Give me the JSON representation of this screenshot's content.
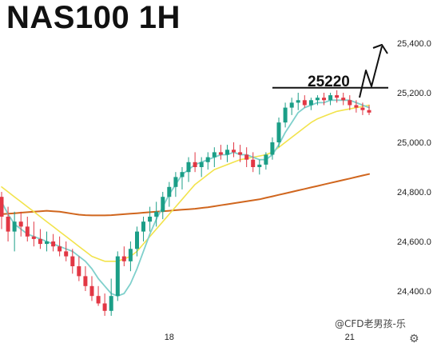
{
  "header": {
    "title": "NAS100 1H"
  },
  "watermark": "@CFD老男孩-乐",
  "chart_data": {
    "type": "candlestick",
    "title": "NAS100 1H",
    "xlabel": "",
    "ylabel": "",
    "ylim": [
      24180,
      25540
    ],
    "y_ticks": [
      24400,
      24600,
      24800,
      25000,
      25200,
      25400
    ],
    "y_tick_labels": [
      "24,400.0",
      "24,600.0",
      "24,800.0",
      "25,000.0",
      "25,200.0",
      "25,400.0"
    ],
    "x_ticks": [
      {
        "label": "18",
        "index": 26
      },
      {
        "label": "21",
        "index": 54
      }
    ],
    "colors": {
      "up": "#1b9e87",
      "down": "#e23744",
      "ma_fast": "#7fd0cc",
      "ma_mid": "#f2e34c",
      "ma_slow": "#d0661e"
    },
    "candles": [
      [
        24780,
        24800,
        24650,
        24700
      ],
      [
        24700,
        24740,
        24600,
        24640
      ],
      [
        24640,
        24720,
        24560,
        24680
      ],
      [
        24680,
        24720,
        24620,
        24660
      ],
      [
        24660,
        24700,
        24600,
        24620
      ],
      [
        24620,
        24680,
        24580,
        24610
      ],
      [
        24610,
        24650,
        24570,
        24590
      ],
      [
        24590,
        24640,
        24560,
        24600
      ],
      [
        24600,
        24630,
        24560,
        24580
      ],
      [
        24580,
        24620,
        24540,
        24560
      ],
      [
        24560,
        24600,
        24520,
        24540
      ],
      [
        24540,
        24570,
        24470,
        24500
      ],
      [
        24500,
        24540,
        24440,
        24460
      ],
      [
        24460,
        24500,
        24400,
        24420
      ],
      [
        24420,
        24460,
        24360,
        24380
      ],
      [
        24380,
        24420,
        24340,
        24350
      ],
      [
        24350,
        24390,
        24300,
        24320
      ],
      [
        24320,
        24450,
        24300,
        24380
      ],
      [
        24380,
        24560,
        24360,
        24540
      ],
      [
        24540,
        24580,
        24500,
        24520
      ],
      [
        24520,
        24600,
        24480,
        24570
      ],
      [
        24570,
        24660,
        24540,
        24640
      ],
      [
        24640,
        24700,
        24600,
        24680
      ],
      [
        24680,
        24740,
        24640,
        24700
      ],
      [
        24700,
        24760,
        24660,
        24720
      ],
      [
        24720,
        24800,
        24690,
        24780
      ],
      [
        24780,
        24840,
        24740,
        24820
      ],
      [
        24820,
        24880,
        24780,
        24860
      ],
      [
        24860,
        24900,
        24810,
        24880
      ],
      [
        24880,
        24940,
        24840,
        24920
      ],
      [
        24920,
        24960,
        24880,
        24900
      ],
      [
        24900,
        24940,
        24860,
        24920
      ],
      [
        24920,
        24960,
        24890,
        24940
      ],
      [
        24940,
        24980,
        24900,
        24960
      ],
      [
        24960,
        24990,
        24930,
        24950
      ],
      [
        24950,
        24990,
        24920,
        24970
      ],
      [
        24970,
        25000,
        24940,
        24960
      ],
      [
        24960,
        24990,
        24920,
        24950
      ],
      [
        24950,
        24980,
        24900,
        24930
      ],
      [
        24930,
        24960,
        24880,
        24900
      ],
      [
        24900,
        24930,
        24870,
        24910
      ],
      [
        24910,
        24960,
        24890,
        24950
      ],
      [
        24950,
        25020,
        24930,
        25000
      ],
      [
        25000,
        25100,
        24980,
        25080
      ],
      [
        25080,
        25160,
        25060,
        25140
      ],
      [
        25140,
        25180,
        25110,
        25160
      ],
      [
        25160,
        25200,
        25130,
        25170
      ],
      [
        25170,
        25190,
        25140,
        25150
      ],
      [
        25150,
        25180,
        25130,
        25170
      ],
      [
        25170,
        25190,
        25150,
        25180
      ],
      [
        25180,
        25200,
        25150,
        25170
      ],
      [
        25170,
        25200,
        25150,
        25190
      ],
      [
        25190,
        25210,
        25160,
        25180
      ],
      [
        25180,
        25200,
        25150,
        25170
      ],
      [
        25170,
        25190,
        25130,
        25150
      ],
      [
        25150,
        25170,
        25120,
        25140
      ],
      [
        25140,
        25160,
        25110,
        25130
      ],
      [
        25130,
        25150,
        25110,
        25120
      ]
    ],
    "ma_fast": [
      24760,
      24710,
      24670,
      24650,
      24630,
      24620,
      24610,
      24600,
      24590,
      24580,
      24570,
      24560,
      24540,
      24520,
      24490,
      24450,
      24420,
      24390,
      24380,
      24390,
      24430,
      24490,
      24560,
      24630,
      24690,
      24740,
      24790,
      24830,
      24870,
      24890,
      24910,
      24920,
      24930,
      24940,
      24950,
      24950,
      24960,
      24950,
      24950,
      24940,
      24930,
      24930,
      24950,
      24990,
      25040,
      25080,
      25120,
      25140,
      25150,
      25160,
      25160,
      25170,
      25170,
      25170,
      25170,
      25160,
      25150,
      25140
    ],
    "ma_mid": [
      24820,
      24800,
      24780,
      24760,
      24740,
      24720,
      24700,
      24680,
      24660,
      24640,
      24620,
      24600,
      24580,
      24560,
      24540,
      24530,
      24520,
      24520,
      24520,
      24530,
      24540,
      24560,
      24590,
      24620,
      24650,
      24680,
      24710,
      24740,
      24770,
      24800,
      24830,
      24850,
      24870,
      24890,
      24900,
      24910,
      24920,
      24930,
      24935,
      24940,
      24945,
      24950,
      24960,
      24980,
      25000,
      25020,
      25040,
      25060,
      25080,
      25095,
      25105,
      25115,
      25125,
      25130,
      25135,
      25140,
      25145,
      25150
    ],
    "ma_slow": [
      24710,
      24712,
      24714,
      24716,
      24718,
      24720,
      24722,
      24724,
      24722,
      24720,
      24716,
      24712,
      24708,
      24706,
      24705,
      24705,
      24705,
      24706,
      24708,
      24710,
      24712,
      24714,
      24716,
      24718,
      24720,
      24722,
      24724,
      24726,
      24728,
      24730,
      24732,
      24735,
      24738,
      24742,
      24746,
      24750,
      24754,
      24758,
      24762,
      24766,
      24770,
      24776,
      24782,
      24788,
      24794,
      24800,
      24806,
      24812,
      24818,
      24824,
      24830,
      24836,
      24842,
      24848,
      24854,
      24860,
      24866,
      24872
    ],
    "annotations": {
      "level_label": "25220",
      "level_value": 25220,
      "level_start_index": 42,
      "level_end_index": 58
    }
  }
}
